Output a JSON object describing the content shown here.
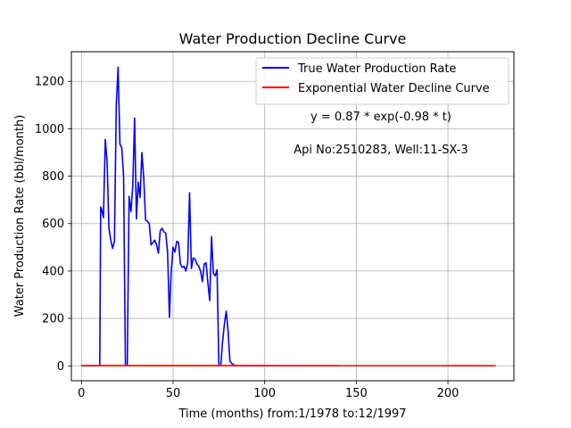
{
  "chart_data": {
    "type": "line",
    "title": "Water Production Decline Curve",
    "xlabel": "Time (months) from:1/1978 to:12/1997",
    "ylabel": "Water Production Rate (bbl/month)",
    "xlim": [
      -5.5,
      236
    ],
    "ylim": [
      -63,
      1325
    ],
    "xticks": [
      0,
      50,
      100,
      150,
      200
    ],
    "yticks": [
      0,
      200,
      400,
      600,
      800,
      1000,
      1200
    ],
    "grid": true,
    "legend_position": "top-right",
    "annotations": [
      "y = 0.87 * exp(-0.98 * t)",
      "Api No:2510283, Well:11-SX-3"
    ],
    "series": [
      {
        "name": "True Water Production Rate",
        "color": "#0000ff",
        "x": [
          0,
          10,
          10.5,
          11,
          12,
          13,
          14,
          15,
          16,
          17,
          18,
          19,
          20,
          21,
          22,
          23,
          24,
          25,
          26,
          27,
          28,
          29,
          30,
          31,
          32,
          33,
          34,
          35,
          36,
          37,
          38,
          39,
          40,
          41,
          42,
          43,
          44,
          45,
          46,
          47,
          48,
          49,
          50,
          51,
          52,
          53,
          54,
          55,
          56,
          57,
          58,
          59,
          60,
          61,
          62,
          63,
          64,
          65,
          66,
          67,
          68,
          69,
          70,
          71,
          72,
          73,
          74,
          75,
          76,
          77,
          78,
          79,
          80,
          81,
          82,
          83,
          84,
          226
        ],
        "y": [
          0,
          0,
          670,
          660,
          625,
          955,
          860,
          580,
          530,
          495,
          525,
          1100,
          1260,
          935,
          920,
          800,
          0,
          0,
          715,
          650,
          755,
          1045,
          620,
          775,
          710,
          900,
          790,
          615,
          610,
          600,
          510,
          520,
          530,
          510,
          475,
          570,
          580,
          565,
          560,
          480,
          205,
          400,
          500,
          480,
          525,
          520,
          430,
          415,
          420,
          400,
          435,
          730,
          410,
          455,
          450,
          430,
          420,
          400,
          355,
          430,
          435,
          350,
          275,
          545,
          390,
          380,
          405,
          0,
          0,
          100,
          175,
          230,
          150,
          20,
          10,
          5,
          0,
          0
        ]
      },
      {
        "name": "Exponential Water Decline Curve",
        "color": "#ff0000",
        "x": [
          0,
          226
        ],
        "y": [
          0.87,
          0
        ]
      }
    ]
  }
}
